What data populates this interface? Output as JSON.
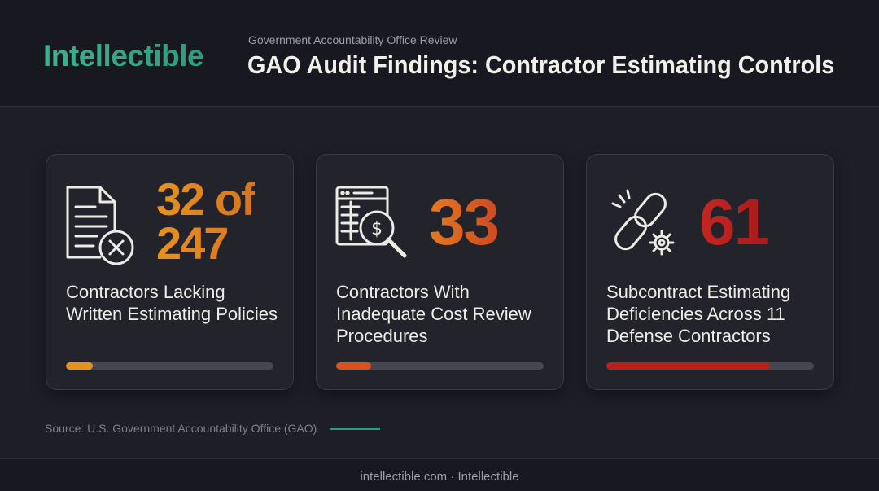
{
  "header": {
    "brand": "Intellectible",
    "kicker": "Government Accountability Office Review",
    "title": "GAO Audit Findings: Contractor Estimating Controls"
  },
  "cards": [
    {
      "icon": "document-x-icon",
      "stat_line1": "32 of",
      "stat_line2": "247",
      "description": "Contractors Lacking Written Estimating Policies",
      "progress": 0.13,
      "color": "#e6921f"
    },
    {
      "icon": "spreadsheet-search-dollar-icon",
      "stat": "33",
      "description": "Contractors With Inadequate Cost Review Procedures",
      "progress": 0.17,
      "color": "#d8521f"
    },
    {
      "icon": "broken-chain-gear-icon",
      "stat": "61",
      "description": "Subcontract Estimating Deficiencies Across 11 Defense Contractors",
      "progress": 0.79,
      "color": "#b8201c"
    }
  ],
  "source": "Source: U.S. Government Accountability Office (GAO)",
  "accent_color": "#2f9c7c",
  "footer": "intellectible.com · Intellectible"
}
